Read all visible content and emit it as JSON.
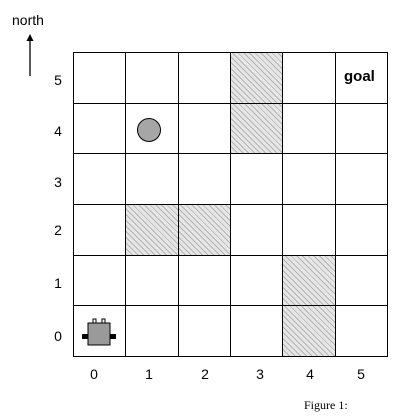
{
  "compass": {
    "label": "north"
  },
  "grid": {
    "rows": 6,
    "cols": 6,
    "blocked_cells": [
      {
        "col": 3,
        "row": 5
      },
      {
        "col": 3,
        "row": 4
      },
      {
        "col": 1,
        "row": 2
      },
      {
        "col": 2,
        "row": 2
      },
      {
        "col": 4,
        "row": 1
      },
      {
        "col": 4,
        "row": 0
      }
    ]
  },
  "axis": {
    "row_labels": [
      "5",
      "4",
      "3",
      "2",
      "1",
      "0"
    ],
    "col_labels": [
      "0",
      "1",
      "2",
      "3",
      "4",
      "5"
    ]
  },
  "goal": {
    "label": "goal",
    "col": 5,
    "row": 5
  },
  "ball": {
    "col": 1,
    "row": 4
  },
  "robot": {
    "col": 0,
    "row": 0
  },
  "caption": "Figure 1:",
  "colors": {
    "ball_fill": "#a6a6a6",
    "robot_body": "#9a9a9a",
    "blocked_fill": "#e6e6e6"
  }
}
